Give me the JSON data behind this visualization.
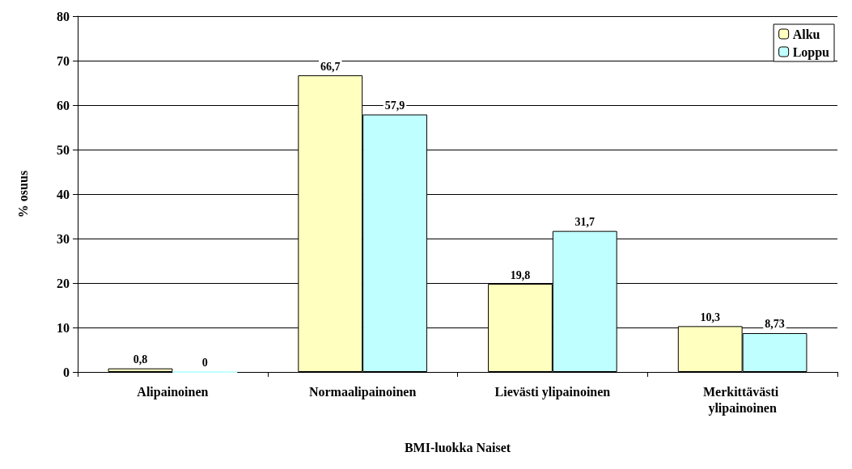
{
  "chart_data": {
    "type": "bar",
    "xlabel": "BMI-luokka Naiset",
    "ylabel": "% osuus",
    "categories": [
      "Alipainoinen",
      "Normaalipainoinen",
      "Lievästi ylipainoinen",
      "Merkittävästi ylipainoinen"
    ],
    "series": [
      {
        "name": "Alku",
        "color": "#ffffc0",
        "values": [
          0.8,
          66.7,
          19.8,
          10.3
        ],
        "value_labels": [
          "0,8",
          "66,7",
          "19,8",
          "10,3"
        ]
      },
      {
        "name": "Loppu",
        "color": "#c0ffff",
        "values": [
          0,
          57.9,
          31.7,
          8.73
        ],
        "value_labels": [
          "0",
          "57,9",
          "31,7",
          "8,73"
        ]
      }
    ],
    "ylim": [
      0,
      80
    ],
    "yticks": [
      0,
      10,
      20,
      30,
      40,
      50,
      60,
      70,
      80
    ],
    "grid": "y",
    "legend": "top right"
  }
}
